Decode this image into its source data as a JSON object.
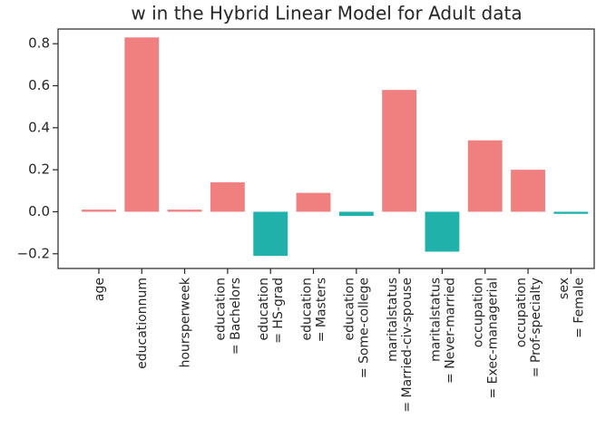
{
  "chart_data": {
    "type": "bar",
    "title": "w in the Hybrid Linear Model for Adult data",
    "categories": [
      "age",
      "educationnum",
      "hoursperweek",
      "education\n= Bachelors",
      "education\n= HS-grad",
      "education\n= Masters",
      "education\n= Some-college",
      "maritalstatus\n= Married-civ-spouse",
      "maritalstatus\n= Never-married",
      "occupation\n= Exec-managerial",
      "occupation\n= Prof-specialty",
      "sex\n= Female"
    ],
    "values": [
      0.01,
      0.83,
      0.01,
      0.14,
      -0.21,
      0.09,
      -0.02,
      0.58,
      -0.19,
      0.34,
      0.2,
      -0.01
    ],
    "positive_color": "#f08080",
    "negative_color": "#20b2aa",
    "ylim": [
      -0.27,
      0.87
    ],
    "yticks": [
      {
        "value": -0.2,
        "label": "−0.2"
      },
      {
        "value": 0,
        "label": "0.0"
      },
      0.2,
      0.4,
      0.6,
      0.8
    ],
    "grid": false
  }
}
